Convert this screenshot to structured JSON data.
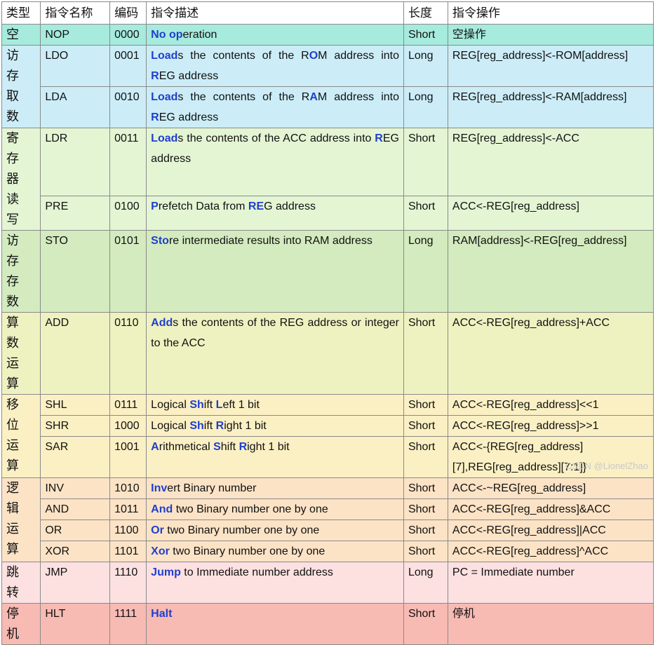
{
  "header": {
    "type": "类型",
    "name": "指令名称",
    "code": "编码",
    "description": "指令描述",
    "length": "长度",
    "operation": "指令操作"
  },
  "groups": [
    {
      "type": "空",
      "color": "#a6ebdd",
      "rows": [
        {
          "name": "NOP",
          "code": "0000",
          "description": [
            {
              "text": "No",
              "em": true
            },
            " ",
            {
              "text": "op",
              "em": true
            },
            "eration"
          ],
          "length": "Short",
          "operation": "空操作"
        }
      ]
    },
    {
      "type": "访存取数",
      "color": "#ccedf7",
      "rows": [
        {
          "name": "LDO",
          "code": "0001",
          "description": [
            {
              "text": "Load",
              "em": true
            },
            "s the contents of the R",
            {
              "text": "O",
              "em": true
            },
            "M address into ",
            {
              "text": "R",
              "em": true
            },
            "EG address"
          ],
          "length": "Long",
          "operation": "REG[reg_address]<-ROM[address]"
        },
        {
          "name": "LDA",
          "code": "0010",
          "description": [
            {
              "text": "Load",
              "em": true
            },
            "s the contents of the R",
            {
              "text": "A",
              "em": true
            },
            "M address into ",
            {
              "text": "R",
              "em": true
            },
            "EG address"
          ],
          "length": "Long",
          "operation": "REG[reg_address]<-RAM[address]"
        }
      ]
    },
    {
      "type": "寄存器读写",
      "color": "#e4f5d4",
      "rows": [
        {
          "name": "LDR",
          "code": "0011",
          "description": [
            {
              "text": "Load",
              "em": true
            },
            "s the contents of the ACC address into ",
            {
              "text": "R",
              "em": true
            },
            "EG address"
          ],
          "length": "Short",
          "operation": "REG[reg_address]<-ACC"
        },
        {
          "name": "PRE",
          "code": "0100",
          "description": [
            {
              "text": "P",
              "em": true
            },
            "refetch Data from ",
            {
              "text": "RE",
              "em": true
            },
            "G address"
          ],
          "length": "Short",
          "operation": "ACC<-REG[reg_address]"
        }
      ]
    },
    {
      "type": "访存存数",
      "color": "#d3ebbf",
      "rows": [
        {
          "name": "STO",
          "code": "0101",
          "description": [
            {
              "text": "Sto",
              "em": true
            },
            "re intermediate results into RAM address"
          ],
          "length": "Long",
          "operation": "RAM[address]<-REG[reg_address]"
        }
      ]
    },
    {
      "type": "算数运算",
      "color": "#eef2c0",
      "rows": [
        {
          "name": "ADD",
          "code": "0110",
          "description": [
            {
              "text": "Add",
              "em": true
            },
            "s the contents of the REG address or integer to the ACC"
          ],
          "length": "Short",
          "operation": "ACC<-REG[reg_address]+ACC"
        }
      ]
    },
    {
      "type": "移位运算",
      "color": "#fbf0c4",
      "rows": [
        {
          "name": "SHL",
          "code": "0111",
          "description": [
            "Logical ",
            {
              "text": "Sh",
              "em": true
            },
            "ift ",
            {
              "text": "L",
              "em": true
            },
            "eft 1 bit"
          ],
          "length": "Short",
          "operation": "ACC<-REG[reg_address]<<1"
        },
        {
          "name": "SHR",
          "code": "1000",
          "description": [
            "Logical ",
            {
              "text": "Sh",
              "em": true
            },
            "ift ",
            {
              "text": "R",
              "em": true
            },
            "ight 1 bit"
          ],
          "length": "Short",
          "operation": "ACC<-REG[reg_address]>>1"
        },
        {
          "name": "SAR",
          "code": "1001",
          "description": [
            {
              "text": "A",
              "em": true
            },
            "rithmetical ",
            {
              "text": "S",
              "em": true
            },
            "hift ",
            {
              "text": "R",
              "em": true
            },
            "ight 1 bit"
          ],
          "length": "Short",
          "operation": "ACC<-{REG[reg_address][7],REG[reg_address][7:1]}"
        }
      ]
    },
    {
      "type": "逻辑运算",
      "color": "#fce3c6",
      "rows": [
        {
          "name": "INV",
          "code": "1010",
          "description": [
            {
              "text": "Inv",
              "em": true
            },
            "ert Binary number"
          ],
          "length": "Short",
          "operation": "ACC<-~REG[reg_address]"
        },
        {
          "name": "AND",
          "code": "1011",
          "description": [
            {
              "text": "And",
              "em": true
            },
            " two Binary number one by one"
          ],
          "length": "Short",
          "operation": "ACC<-REG[reg_address]&ACC"
        },
        {
          "name": "OR",
          "code": "1100",
          "description": [
            {
              "text": "Or",
              "em": true
            },
            " two Binary number one by one"
          ],
          "length": "Short",
          "operation": "ACC<-REG[reg_address]|ACC"
        },
        {
          "name": "XOR",
          "code": "1101",
          "description": [
            {
              "text": "Xor",
              "em": true
            },
            " two Binary number one by one"
          ],
          "length": "Short",
          "operation": "ACC<-REG[reg_address]^ACC"
        }
      ]
    },
    {
      "type": "跳转",
      "color": "#fde1e1",
      "rows": [
        {
          "name": "JMP",
          "code": "1110",
          "description": [
            {
              "text": "Jump",
              "em": true
            },
            " to Immediate number address"
          ],
          "length": "Long",
          "operation": "PC = Immediate number"
        }
      ]
    },
    {
      "type": "停机",
      "color": "#f7bbb3",
      "rows": [
        {
          "name": "HLT",
          "code": "1111",
          "description": [
            {
              "text": "Halt",
              "em": true
            }
          ],
          "length": "Short",
          "operation": "停机"
        }
      ]
    }
  ],
  "watermark": "CSDN @LionelZhao"
}
